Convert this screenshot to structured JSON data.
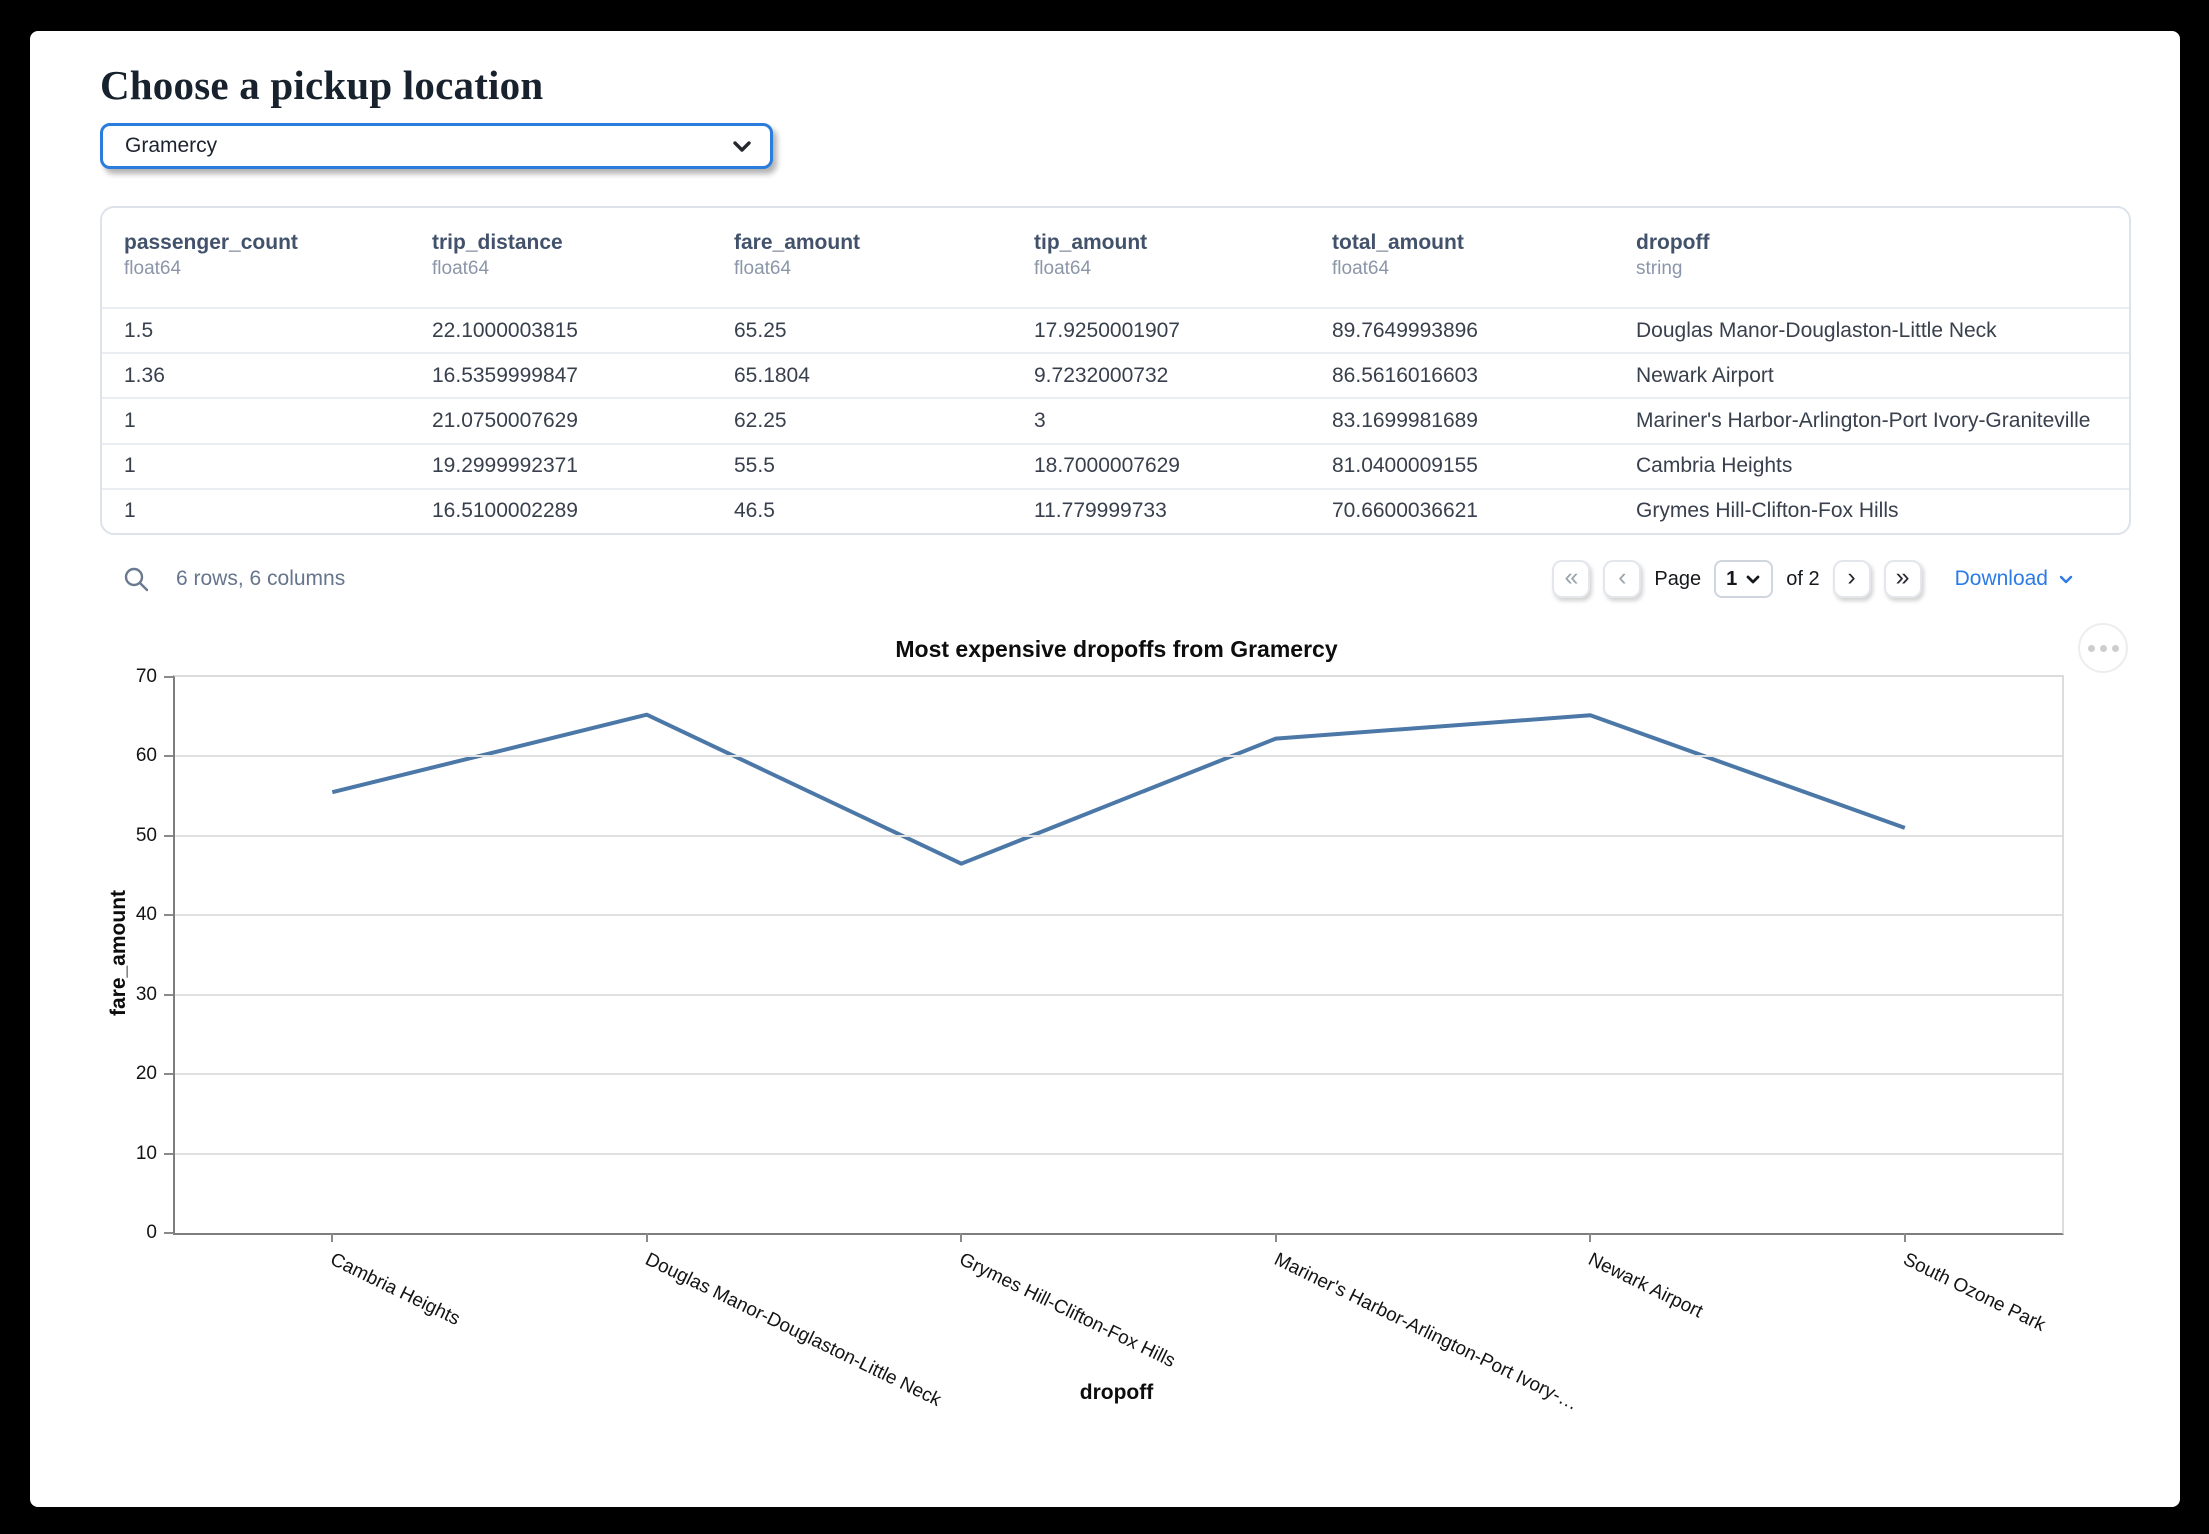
{
  "page": {
    "title": "Choose a pickup location"
  },
  "pickup_select": {
    "value": "Gramercy"
  },
  "table": {
    "columns": [
      {
        "name": "passenger_count",
        "dtype": "float64"
      },
      {
        "name": "trip_distance",
        "dtype": "float64"
      },
      {
        "name": "fare_amount",
        "dtype": "float64"
      },
      {
        "name": "tip_amount",
        "dtype": "float64"
      },
      {
        "name": "total_amount",
        "dtype": "float64"
      },
      {
        "name": "dropoff",
        "dtype": "string"
      }
    ],
    "rows": [
      [
        "1.5",
        "22.1000003815",
        "65.25",
        "17.9250001907",
        "89.7649993896",
        "Douglas Manor-Douglaston-Little Neck"
      ],
      [
        "1.36",
        "16.5359999847",
        "65.1804",
        "9.7232000732",
        "86.5616016603",
        "Newark Airport"
      ],
      [
        "1",
        "21.0750007629",
        "62.25",
        "3",
        "83.1699981689",
        "Mariner's Harbor-Arlington-Port Ivory-Graniteville"
      ],
      [
        "1",
        "19.2999992371",
        "55.5",
        "18.7000007629",
        "81.0400009155",
        "Cambria Heights"
      ],
      [
        "1",
        "16.5100002289",
        "46.5",
        "11.779999733",
        "70.6600036621",
        "Grymes Hill-Clifton-Fox Hills"
      ]
    ]
  },
  "table_footer": {
    "status": "6 rows, 6 columns",
    "pagination": {
      "first": "«",
      "prev": "‹",
      "page_label": "Page",
      "page_value": "1",
      "total_label": "of 2",
      "next": "›",
      "last": "»"
    },
    "download_label": "Download"
  },
  "chart_data": {
    "type": "line",
    "title": "Most expensive dropoffs from Gramercy",
    "xlabel": "dropoff",
    "ylabel": "fare_amount",
    "categories": [
      "Cambria Heights",
      "Douglas Manor-Douglaston-Little Neck",
      "Grymes Hill-Clifton-Fox Hills",
      "Mariner's Harbor-Arlington-Port Ivory-…",
      "Newark Airport",
      "South Ozone Park"
    ],
    "values": [
      55.5,
      65.25,
      46.5,
      62.25,
      65.1804,
      51
    ],
    "ylim": [
      0,
      70
    ],
    "yticks": [
      0,
      10,
      20,
      30,
      40,
      50,
      60,
      70
    ],
    "grid": true,
    "legend": "none",
    "line_color": "#4c78a8"
  },
  "colors": {
    "select_border": "#2b7ddd",
    "link_blue": "#2c7be5",
    "line_blue": "#4c78a8",
    "header_text": "#42526b",
    "muted_text": "#8b96a8"
  }
}
